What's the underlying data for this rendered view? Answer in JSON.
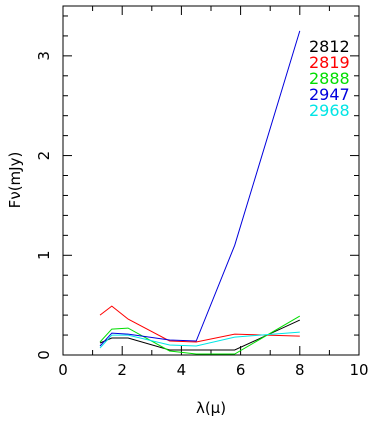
{
  "chart_data": {
    "type": "line",
    "xlabel": "λ(μ)",
    "ylabel": "Fν(mJy)",
    "xlim": [
      0,
      10
    ],
    "ylim": [
      0,
      3.5
    ],
    "x_ticks": [
      0,
      2,
      4,
      6,
      8,
      10
    ],
    "y_ticks": [
      0,
      1,
      2,
      3
    ],
    "legend_position": "top-right",
    "grid": false,
    "series": [
      {
        "name": "2812",
        "color": "#000000",
        "x": [
          1.25,
          1.65,
          2.2,
          3.6,
          4.5,
          5.8,
          8.0
        ],
        "y": [
          0.12,
          0.17,
          0.17,
          0.05,
          0.05,
          0.05,
          0.35
        ]
      },
      {
        "name": "2819",
        "color": "#ff0000",
        "x": [
          1.25,
          1.65,
          2.2,
          3.6,
          4.5,
          5.8,
          8.0
        ],
        "y": [
          0.4,
          0.49,
          0.36,
          0.14,
          0.13,
          0.21,
          0.19
        ]
      },
      {
        "name": "2888",
        "color": "#00dd00",
        "x": [
          1.25,
          1.65,
          2.2,
          3.6,
          4.5,
          5.8,
          8.0
        ],
        "y": [
          0.13,
          0.26,
          0.27,
          0.04,
          0.01,
          0.01,
          0.39
        ]
      },
      {
        "name": "2947",
        "color": "#0000dd",
        "x": [
          1.25,
          1.65,
          2.2,
          3.6,
          4.5,
          5.8,
          8.0
        ],
        "y": [
          0.09,
          0.22,
          0.21,
          0.15,
          0.14,
          1.1,
          3.25
        ]
      },
      {
        "name": "2968",
        "color": "#00e5e5",
        "x": [
          1.25,
          1.65,
          2.2,
          3.6,
          4.5,
          5.8,
          8.0
        ],
        "y": [
          0.07,
          0.2,
          0.2,
          0.1,
          0.09,
          0.18,
          0.23
        ]
      }
    ]
  }
}
